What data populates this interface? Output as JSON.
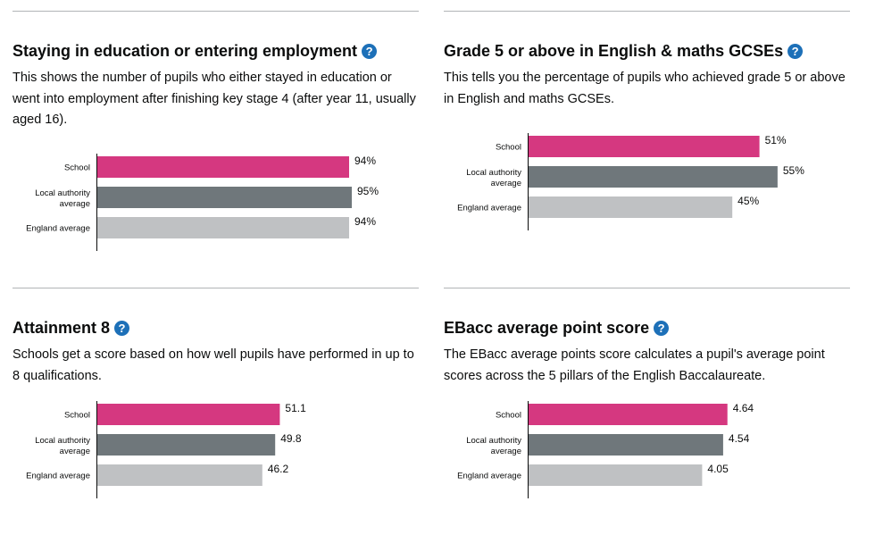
{
  "colors": {
    "school": "#d53880",
    "local_authority": "#6f777b",
    "england": "#bfc1c3",
    "help_icon": "#1d70b8"
  },
  "icon": "question-mark-icon",
  "charts": [
    {
      "title": "Staying in education or entering employment",
      "help_glyph": "?",
      "description": "This shows the number of pupils who either stayed in education or went into employment after finishing key stage 4 (after year 11, usually aged 16).",
      "chart_data": {
        "type": "bar",
        "orientation": "horizontal",
        "categories": [
          [
            "School"
          ],
          [
            "Local authority",
            "average"
          ],
          [
            "England average"
          ]
        ],
        "values": [
          94,
          95,
          94
        ],
        "value_labels": [
          "94%",
          "95%",
          "94%"
        ],
        "xlim": [
          0,
          120
        ],
        "grid": false
      }
    },
    {
      "title": "Grade 5 or above in English & maths GCSEs",
      "help_glyph": "?",
      "description": "This tells you the percentage of pupils who achieved grade 5 or above in English and maths GCSEs.",
      "chart_data": {
        "type": "bar",
        "orientation": "horizontal",
        "categories": [
          [
            "School"
          ],
          [
            "Local authority",
            "average"
          ],
          [
            "England average"
          ]
        ],
        "values": [
          51,
          55,
          45
        ],
        "value_labels": [
          "51%",
          "55%",
          "45%"
        ],
        "xlim": [
          0,
          71
        ],
        "grid": false
      }
    },
    {
      "title": "Attainment 8",
      "help_glyph": "?",
      "description": "Schools get a score based on how well pupils have performed in up to 8 qualifications.",
      "chart_data": {
        "type": "bar",
        "orientation": "horizontal",
        "categories": [
          [
            "School"
          ],
          [
            "Local authority",
            "average"
          ],
          [
            "England average"
          ]
        ],
        "values": [
          51.1,
          49.8,
          46.2
        ],
        "value_labels": [
          "51.1",
          "49.8",
          "46.2"
        ],
        "xlim": [
          0,
          90
        ],
        "grid": false
      }
    },
    {
      "title": "EBacc average point score",
      "help_glyph": "?",
      "description": "The EBacc average points score calculates a pupil's average point scores across the 5 pillars of the English Baccalaureate.",
      "chart_data": {
        "type": "bar",
        "orientation": "horizontal",
        "categories": [
          [
            "School"
          ],
          [
            "Local authority",
            "average"
          ],
          [
            "England average"
          ]
        ],
        "values": [
          4.64,
          4.54,
          4.05
        ],
        "value_labels": [
          "4.64",
          "4.54",
          "4.05"
        ],
        "xlim": [
          0,
          7.5
        ],
        "grid": false
      }
    }
  ]
}
